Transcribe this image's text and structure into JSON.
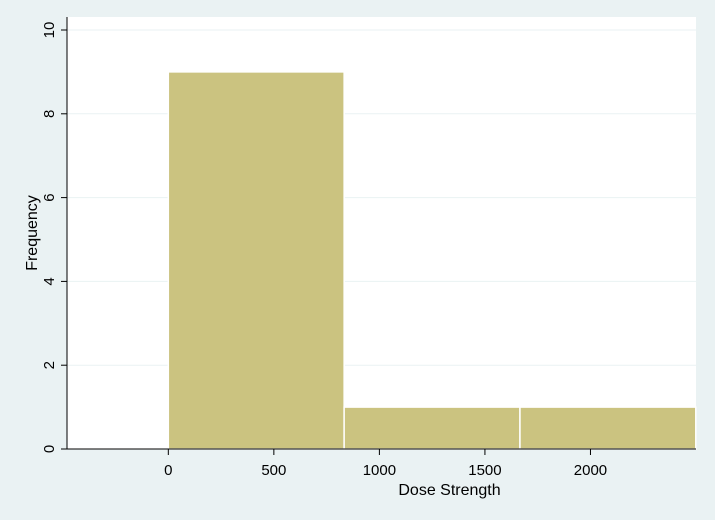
{
  "chart_data": {
    "type": "bar",
    "subtype": "histogram",
    "xlabel": "Dose Strength",
    "ylabel": "Frequency",
    "xlim": [
      -480,
      2500
    ],
    "ylim": [
      0,
      10
    ],
    "xticks": [
      0,
      500,
      1000,
      1500,
      2000
    ],
    "yticks": [
      0,
      2,
      4,
      6,
      8,
      10
    ],
    "bins": [
      {
        "start": 0,
        "end": 833,
        "value": 9
      },
      {
        "start": 833,
        "end": 1666,
        "value": 1
      },
      {
        "start": 1666,
        "end": 2499,
        "value": 1
      }
    ],
    "grid": true,
    "legend": "none",
    "colors": {
      "background": "#eaf2f3",
      "plot_background": "#ffffff",
      "bar_fill": "#cbc380",
      "bar_stroke": "#ffffff",
      "grid": "#eaf2f3",
      "axis": "#000000"
    }
  }
}
